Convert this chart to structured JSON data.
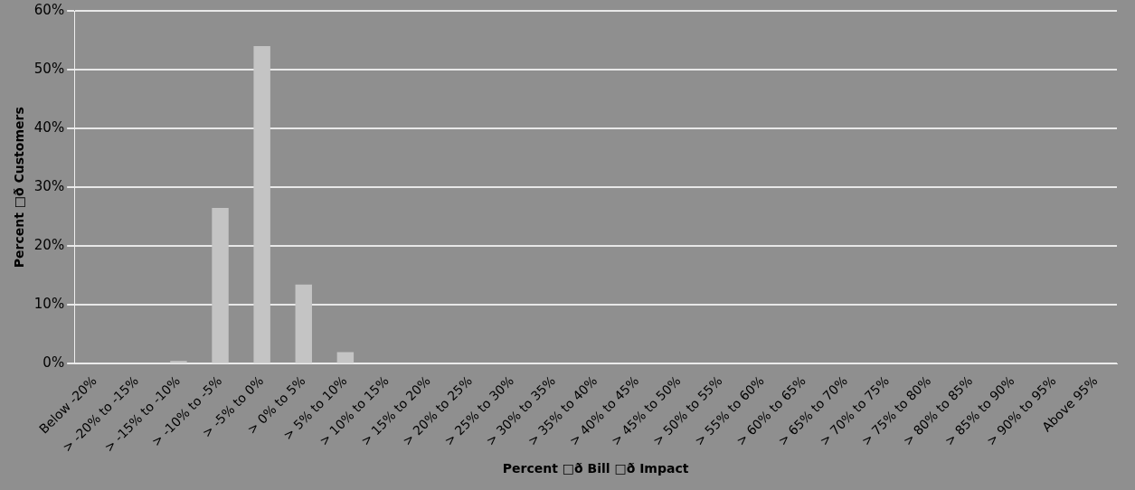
{
  "chart_data": {
    "type": "bar",
    "xlabel": "Percent □ð Bill □ð Impact",
    "ylabel": "Percent □ð Customers",
    "categories": [
      "Below -20%",
      "> -20% to -15%",
      "> -15% to -10%",
      "> -10% to -5%",
      "> -5% to 0%",
      "> 0% to 5%",
      "> 5% to 10%",
      "> 10% to 15%",
      "> 15% to 20%",
      "> 20% to 25%",
      "> 25% to 30%",
      "> 30% to 35%",
      "> 35% to 40%",
      "> 40% to 45%",
      "> 45% to 50%",
      "> 50% to 55%",
      "> 55% to 60%",
      "> 60% to 65%",
      "> 65% to 70%",
      "> 70% to 75%",
      "> 75% to 80%",
      "> 80% to 85%",
      "> 85% to 90%",
      "> 90% to 95%",
      "Above 95%"
    ],
    "values": [
      0,
      0,
      0.5,
      26.5,
      54,
      13.5,
      2,
      0,
      0,
      0,
      0,
      0,
      0,
      0,
      0,
      0,
      0,
      0,
      0,
      0,
      0,
      0,
      0,
      0,
      0
    ],
    "color": "#c4c4c4",
    "ylim": [
      0,
      60
    ],
    "yticks": [
      {
        "value": 0,
        "label": "0%"
      },
      {
        "value": 10,
        "label": "10%"
      },
      {
        "value": 20,
        "label": "20%"
      },
      {
        "value": 30,
        "label": "30%"
      },
      {
        "value": 40,
        "label": "40%"
      },
      {
        "value": 50,
        "label": "50%"
      },
      {
        "value": 60,
        "label": "60%"
      }
    ],
    "grid": "y",
    "legend": false
  }
}
